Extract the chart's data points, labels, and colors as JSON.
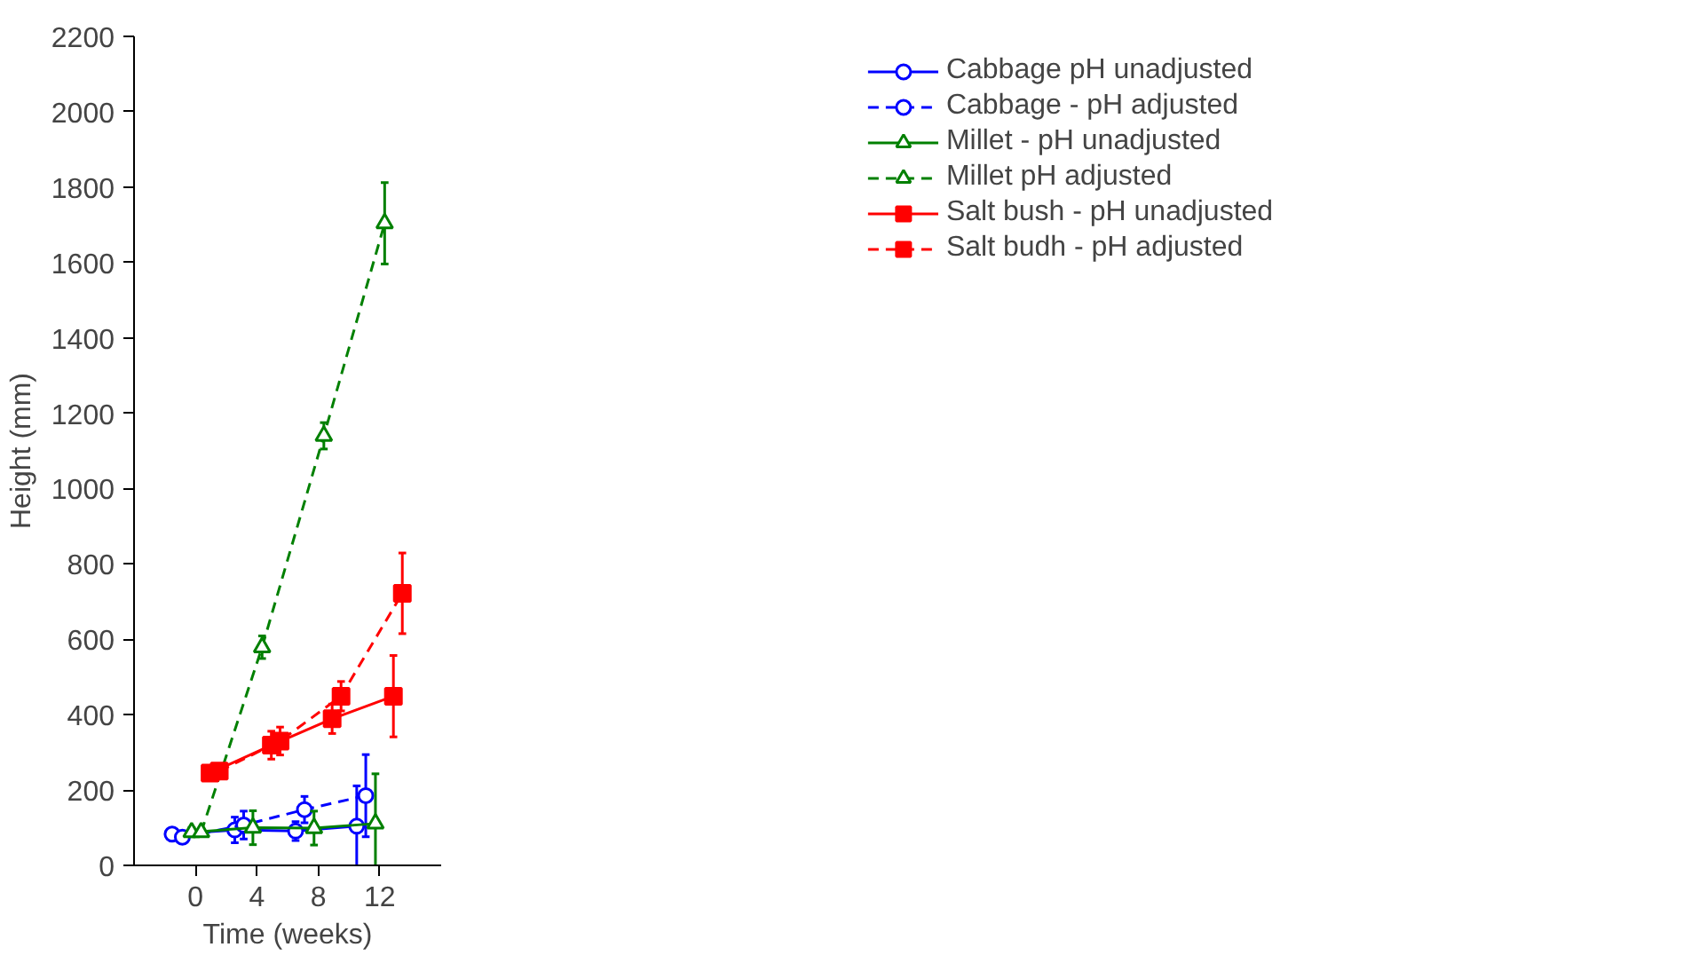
{
  "chart_data": {
    "type": "line",
    "xlabel": "Time (weeks)",
    "ylabel": "Height (mm)",
    "xlim": [
      -4,
      16
    ],
    "xticks": [
      0,
      4,
      8,
      12
    ],
    "ylim": [
      0,
      2200
    ],
    "yticks": [
      0,
      200,
      400,
      600,
      800,
      1000,
      1200,
      1400,
      1600,
      1800,
      2000,
      2200
    ],
    "grid": false,
    "legend": "right",
    "series": [
      {
        "name": "Cabbage pH unadjusted",
        "color": "#0000ff",
        "marker": "circle",
        "line_style": "solid",
        "x": [
          -1.52,
          2.56,
          6.52,
          10.5
        ],
        "values": [
          83,
          94,
          91,
          104
        ],
        "errors": [
          8,
          34,
          25,
          107
        ]
      },
      {
        "name": "Cabbage - pH adjusted",
        "color": "#0000ff",
        "marker": "circle",
        "line_style": "dashed",
        "x": [
          -0.85,
          3.14,
          7.1,
          11.09
        ],
        "values": [
          75,
          107,
          148,
          185
        ],
        "errors": [
          8,
          37,
          35,
          109
        ]
      },
      {
        "name": "Millet - pH unadjusted",
        "color": "#008000",
        "marker": "triangle",
        "line_style": "solid",
        "x": [
          -0.25,
          3.74,
          7.72,
          11.72
        ],
        "values": [
          88,
          100,
          99,
          111
        ],
        "errors": [
          12,
          45,
          45,
          132
        ]
      },
      {
        "name": "Millet pH adjusted",
        "color": "#008000",
        "marker": "triangle",
        "line_style": "dashed",
        "x": [
          0.37,
          4.34,
          8.36,
          12.32
        ],
        "values": [
          88,
          579,
          1140,
          1704
        ],
        "errors": [
          10,
          30,
          35,
          108
        ]
      },
      {
        "name": "Salt bush - pH unadjusted",
        "color": "#ff0000",
        "marker": "square",
        "line_style": "solid",
        "x": [
          0.95,
          4.94,
          8.9,
          12.89
        ],
        "values": [
          245,
          319,
          389,
          449
        ],
        "errors": [
          12,
          37,
          39,
          108
        ]
      },
      {
        "name": "Salt budh - pH adjusted",
        "color": "#ff0000",
        "marker": "square",
        "line_style": "dashed",
        "x": [
          1.55,
          5.51,
          9.48,
          13.47
        ],
        "values": [
          250,
          330,
          449,
          722
        ],
        "errors": [
          12,
          37,
          39,
          107
        ]
      }
    ]
  }
}
